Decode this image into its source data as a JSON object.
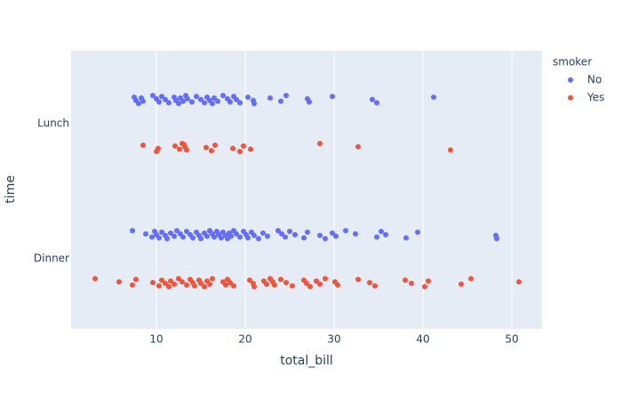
{
  "chart_data": {
    "type": "strip",
    "x_label": "total_bill",
    "y_label": "time",
    "legend_title": "smoker",
    "categories": [
      "Dinner",
      "Lunch"
    ],
    "xlim": [
      0.4,
      53.4
    ],
    "xticks": [
      10,
      20,
      30,
      40,
      50
    ],
    "ylim": [
      -0.52,
      1.54
    ],
    "grid": true,
    "legend_position": "top-right",
    "series": [
      {
        "name": "No",
        "color": "#636efa",
        "values": [
          [
            7.3,
            8.8,
            9.5,
            9.8,
            10.0,
            10.3,
            10.6,
            11.0,
            11.2,
            11.6,
            12.0,
            12.3,
            12.7,
            13.0,
            13.4,
            13.8,
            14.1,
            14.5,
            14.8,
            15.0,
            15.4,
            15.7,
            16.0,
            16.3,
            16.5,
            16.8,
            17.0,
            17.3,
            17.5,
            17.8,
            18.0,
            18.2,
            18.4,
            18.7,
            19.0,
            19.4,
            19.8,
            20.1,
            20.3,
            20.7,
            21.0,
            21.5,
            22.0,
            22.5,
            23.7,
            24.1,
            24.5,
            25.0,
            25.6,
            26.6,
            27.0,
            28.4,
            29.0,
            29.8,
            30.2,
            31.3,
            32.4,
            34.8,
            35.3,
            35.8,
            38.1,
            39.4,
            48.2,
            48.3
          ],
          [
            7.5,
            7.7,
            8.0,
            8.3,
            8.5,
            9.6,
            10.0,
            10.3,
            10.6,
            11.0,
            11.4,
            12.0,
            12.2,
            12.5,
            12.7,
            13.0,
            13.3,
            13.5,
            14.0,
            14.5,
            15.0,
            15.4,
            15.7,
            16.0,
            16.3,
            16.5,
            16.9,
            17.5,
            18.0,
            18.3,
            18.7,
            19.0,
            19.4,
            20.3,
            20.9,
            21.0,
            22.8,
            24.0,
            24.6,
            27.0,
            27.2,
            29.8,
            34.3,
            34.8,
            41.2
          ]
        ]
      },
      {
        "name": "Yes",
        "color": "#ef553b",
        "values": [
          [
            3.1,
            5.8,
            7.3,
            7.7,
            9.6,
            10.3,
            10.6,
            11.0,
            11.4,
            11.6,
            12.0,
            12.5,
            12.9,
            13.4,
            13.8,
            14.1,
            14.3,
            14.8,
            15.0,
            15.4,
            15.7,
            16.0,
            16.3,
            17.5,
            17.8,
            18.0,
            18.3,
            18.7,
            20.5,
            20.9,
            21.0,
            22.1,
            22.4,
            22.8,
            23.1,
            23.3,
            24.0,
            24.6,
            25.3,
            26.6,
            26.9,
            27.3,
            28.0,
            28.4,
            29.0,
            30.1,
            30.4,
            32.7,
            34.0,
            34.6,
            38.0,
            38.7,
            40.2,
            40.6,
            44.3,
            45.4,
            50.8
          ],
          [
            8.5,
            10.2,
            10.0,
            12.1,
            12.6,
            12.9,
            13.2,
            13.4,
            13.1,
            15.6,
            16.2,
            16.6,
            18.6,
            19.4,
            19.8,
            20.6,
            28.4,
            32.7,
            43.1
          ]
        ]
      }
    ]
  }
}
